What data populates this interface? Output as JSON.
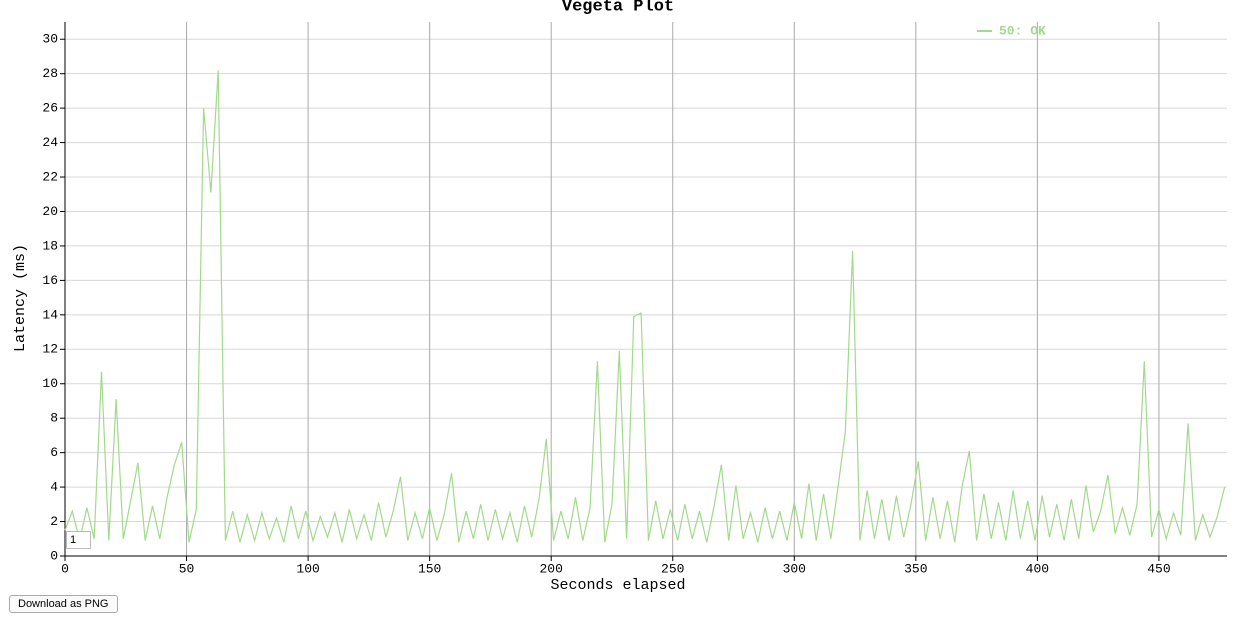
{
  "chart_data": {
    "type": "line",
    "title": "Vegeta Plot",
    "x_label": "Seconds elapsed",
    "y_label": "Latency (ms)",
    "x": [
      0,
      3,
      6,
      9,
      12,
      15,
      18,
      21,
      24,
      27,
      30,
      33,
      36,
      39,
      42,
      45,
      48,
      51,
      54,
      57,
      60,
      63,
      66,
      69,
      72,
      75,
      78,
      81,
      84,
      87,
      90,
      93,
      96,
      99,
      102,
      105,
      108,
      111,
      114,
      117,
      120,
      123,
      126,
      129,
      132,
      135,
      138,
      141,
      144,
      147,
      150,
      153,
      156,
      159,
      162,
      165,
      168,
      171,
      174,
      177,
      180,
      183,
      186,
      189,
      192,
      195,
      198,
      201,
      204,
      207,
      210,
      213,
      216,
      219,
      222,
      225,
      228,
      231,
      234,
      237,
      240,
      243,
      246,
      249,
      252,
      255,
      258,
      261,
      264,
      267,
      270,
      273,
      276,
      279,
      282,
      285,
      288,
      291,
      294,
      297,
      300,
      303,
      306,
      309,
      312,
      315,
      318,
      321,
      324,
      327,
      330,
      333,
      336,
      339,
      342,
      345,
      348,
      351,
      354,
      357,
      360,
      363,
      366,
      369,
      372,
      375,
      378,
      381,
      384,
      387,
      390,
      393,
      396,
      399,
      402,
      405,
      408,
      411,
      414,
      417,
      420,
      423,
      426,
      429,
      432,
      435,
      438,
      441,
      444,
      447,
      450,
      453,
      456,
      459,
      462,
      465,
      468,
      471,
      474,
      477
    ],
    "series": [
      {
        "name": "50: OK",
        "color": "#a3d98c",
        "values": [
          1.5,
          2.6,
          0.9,
          2.8,
          1.0,
          10.7,
          0.9,
          9.1,
          1.0,
          3.2,
          5.4,
          0.9,
          2.9,
          1.0,
          3.4,
          5.3,
          6.6,
          0.8,
          2.7,
          26,
          21.1,
          28.2,
          0.9,
          2.6,
          0.8,
          2.4,
          0.9,
          2.5,
          1.0,
          2.2,
          0.8,
          2.9,
          1.0,
          2.6,
          0.9,
          2.3,
          1.1,
          2.5,
          0.8,
          2.7,
          1.0,
          2.4,
          0.9,
          3.1,
          1.1,
          2.6,
          4.6,
          0.9,
          2.5,
          1.0,
          2.8,
          0.9,
          2.4,
          4.8,
          0.8,
          2.6,
          1.0,
          3.0,
          0.9,
          2.7,
          1.0,
          2.5,
          0.8,
          2.9,
          1.1,
          3.3,
          6.8,
          0.9,
          2.6,
          1.0,
          3.4,
          0.9,
          2.8,
          11.3,
          0.8,
          3.0,
          11.9,
          1.0,
          13.9,
          14.1,
          0.9,
          3.2,
          1.0,
          2.7,
          0.9,
          3.0,
          1.0,
          2.6,
          0.8,
          2.9,
          5.3,
          0.9,
          4.1,
          1.0,
          2.5,
          0.8,
          2.8,
          1.0,
          2.6,
          0.9,
          3.1,
          1.0,
          4.2,
          0.9,
          3.6,
          1.0,
          4.0,
          7.2,
          17.7,
          0.9,
          3.8,
          1.0,
          3.3,
          0.9,
          3.5,
          1.1,
          3.0,
          5.5,
          0.9,
          3.4,
          1.0,
          3.2,
          0.8,
          4.0,
          6.1,
          0.9,
          3.6,
          1.0,
          3.1,
          0.9,
          3.8,
          1.0,
          3.2,
          0.9,
          3.5,
          1.1,
          3.0,
          0.9,
          3.3,
          1.0,
          4.1,
          1.4,
          2.6,
          4.7,
          1.3,
          2.8,
          1.2,
          3.0,
          11.3,
          1.1,
          2.7,
          1.0,
          2.5,
          1.2,
          7.7,
          0.9,
          2.4,
          1.1,
          2.3,
          4.0
        ]
      }
    ],
    "xlim": [
      0,
      478
    ],
    "ylim": [
      0,
      31
    ],
    "xticks": [
      0,
      50,
      100,
      150,
      200,
      250,
      300,
      350,
      400,
      450
    ],
    "yticks": [
      0,
      2,
      4,
      6,
      8,
      10,
      12,
      14,
      16,
      18,
      20,
      22,
      24,
      26,
      28,
      30
    ],
    "grid": true,
    "legend": "top-right"
  },
  "controls": {
    "roll_period": "1",
    "download_button": "Download as PNG"
  }
}
